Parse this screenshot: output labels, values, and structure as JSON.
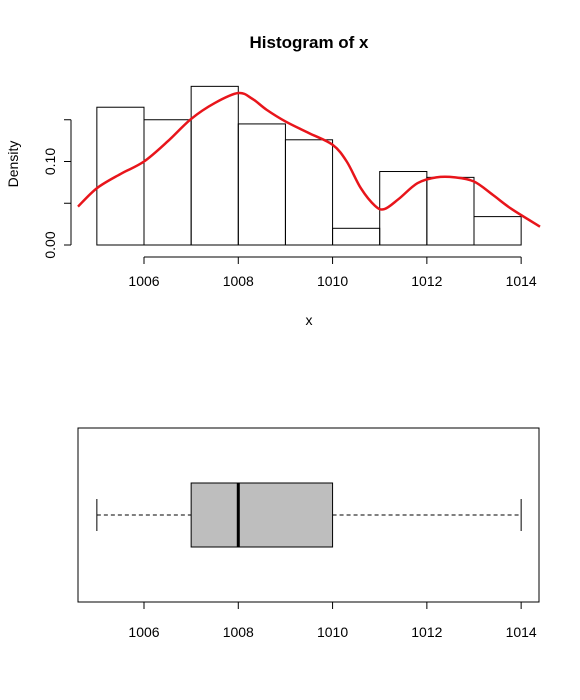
{
  "chart_data": [
    {
      "type": "histogram",
      "title": "Histogram of x",
      "xlabel": "x",
      "ylabel": "Density",
      "bins": [
        1005,
        1006,
        1007,
        1008,
        1009,
        1010,
        1011,
        1012,
        1013,
        1014
      ],
      "densities": [
        0.165,
        0.15,
        0.19,
        0.145,
        0.126,
        0.02,
        0.088,
        0.081,
        0.034
      ],
      "x_ticks": [
        "1006",
        "1008",
        "1010",
        "1012",
        "1014"
      ],
      "y_ticks": [
        "0.00",
        "0.10"
      ],
      "xlim": [
        1004.6,
        1014.4
      ],
      "ylim": [
        0,
        0.2
      ],
      "density_curve": {
        "color": "#e8151b",
        "x": [
          1004.6,
          1005.0,
          1005.5,
          1006.0,
          1006.5,
          1007.0,
          1007.5,
          1008.0,
          1008.3,
          1008.6,
          1009.0,
          1009.5,
          1010.0,
          1010.3,
          1010.6,
          1010.9,
          1011.1,
          1011.4,
          1011.8,
          1012.2,
          1012.6,
          1013.0,
          1013.4,
          1013.8,
          1014.4
        ],
        "y": [
          0.046,
          0.068,
          0.085,
          0.1,
          0.124,
          0.151,
          0.17,
          0.182,
          0.175,
          0.162,
          0.148,
          0.134,
          0.12,
          0.1,
          0.068,
          0.047,
          0.043,
          0.055,
          0.074,
          0.081,
          0.081,
          0.076,
          0.06,
          0.043,
          0.022
        ]
      }
    },
    {
      "type": "boxplot",
      "x_ticks": [
        "1006",
        "1008",
        "1010",
        "1012",
        "1014"
      ],
      "xlim": [
        1004.6,
        1014.4
      ],
      "min": 1005,
      "q1": 1007,
      "median": 1008,
      "q3": 1010,
      "max": 1014,
      "box_color": "#bebebe"
    }
  ]
}
